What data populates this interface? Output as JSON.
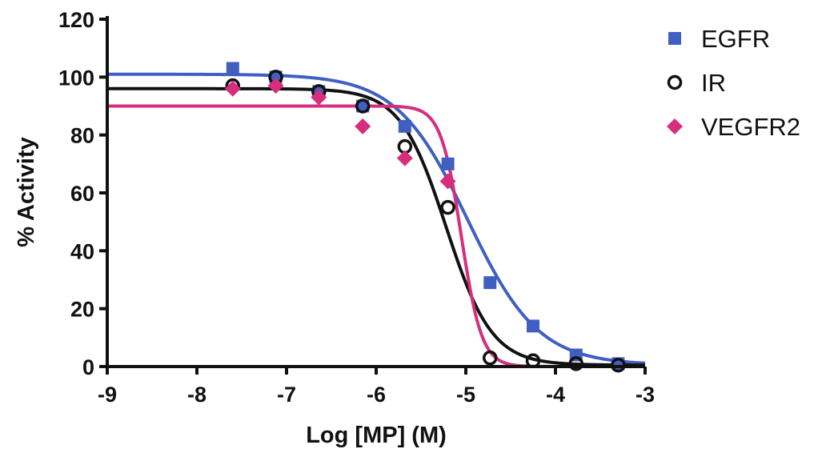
{
  "chart_data": {
    "type": "scatter",
    "xlabel": "Log [MP] (M)",
    "ylabel": "% Activity",
    "xlim": [
      -9,
      -3
    ],
    "ylim": [
      0,
      120
    ],
    "x_ticks": [
      "-9",
      "-8",
      "-7",
      "-6",
      "-5",
      "-4",
      "-3"
    ],
    "y_ticks": [
      "0",
      "20",
      "40",
      "60",
      "80",
      "100",
      "120"
    ],
    "grid": false,
    "legend_position": "top-right",
    "series": [
      {
        "name": "EGFR",
        "color": "#3f5fc1",
        "marker": "square",
        "x": [
          -7.6,
          -7.12,
          -6.64,
          -6.15,
          -5.68,
          -5.2,
          -4.73,
          -4.25,
          -3.77,
          -3.3
        ],
        "y": [
          103,
          100,
          95,
          90,
          83,
          70,
          29,
          14,
          4,
          1
        ],
        "fit": {
          "top": 101,
          "bottom": 0.5,
          "logIC50": -4.98,
          "hill": 1.1
        }
      },
      {
        "name": "IR",
        "color": "#111111",
        "marker": "circle",
        "x": [
          -7.6,
          -7.12,
          -6.64,
          -6.15,
          -5.68,
          -5.2,
          -4.73,
          -4.25,
          -3.77,
          -3.3
        ],
        "y": [
          97,
          100,
          95,
          90,
          76,
          55,
          3,
          2,
          1,
          0.5
        ],
        "fit": {
          "top": 96,
          "bottom": 0.5,
          "logIC50": -5.22,
          "hill": 1.7
        }
      },
      {
        "name": "VEGFR2",
        "color": "#d62d7d",
        "marker": "diamond",
        "x": [
          -7.6,
          -7.12,
          -6.64,
          -6.15,
          -5.68,
          -5.2
        ],
        "y": [
          96,
          97,
          93,
          83,
          72,
          64
        ],
        "fit": {
          "top": 90,
          "bottom": 0,
          "logIC50": -5.05,
          "hill": 3.8
        }
      }
    ]
  }
}
